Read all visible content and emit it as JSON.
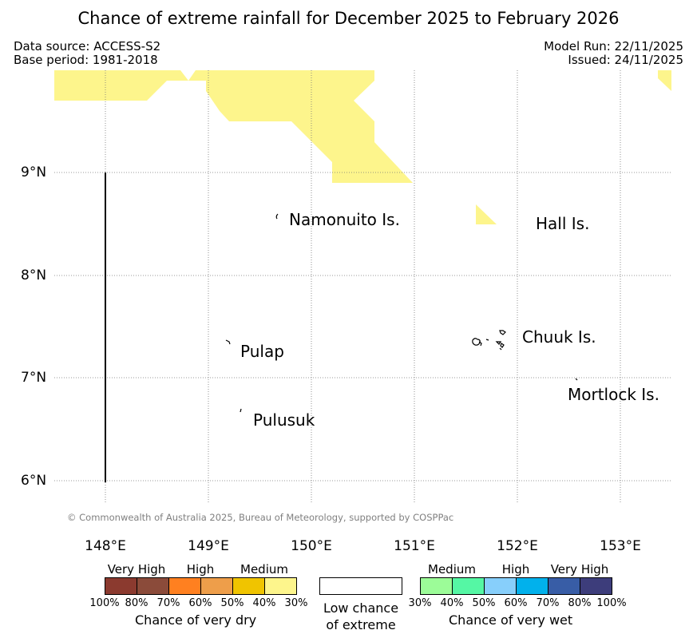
{
  "title": "Chance of extreme rainfall for December 2025 to February 2026",
  "meta": {
    "data_source": "Data source: ACCESS-S2",
    "base_period": "Base period: 1981-2018",
    "model_run": "Model Run: 22/11/2025",
    "issued": "Issued: 24/11/2025"
  },
  "map": {
    "lon_ticks": [
      "148°E",
      "149°E",
      "150°E",
      "151°E",
      "152°E",
      "153°E"
    ],
    "lat_ticks": [
      "9°N",
      "8°N",
      "7°N",
      "6°N"
    ],
    "islands": {
      "namonuito": "Namonuito Is.",
      "hall": "Hall Is.",
      "pulap": "Pulap",
      "chuuk": "Chuuk Is.",
      "mortlock": "Mortlock Is.",
      "pulusuk": "Pulusuk"
    },
    "credit": "© Commonwealth of Australia 2025, Bureau of Meteorology, supported by COSPPac",
    "shading_color": "#fdf58c"
  },
  "legend": {
    "dry": {
      "categories": [
        "Very High",
        "High",
        "Medium"
      ],
      "colors": [
        "#8b3a2f",
        "#8b4b3a",
        "#ff8020",
        "#ee9e4a",
        "#f0c400",
        "#fdf58c"
      ],
      "ticks": [
        "100%",
        "80%",
        "70%",
        "60%",
        "50%",
        "40%",
        "30%"
      ],
      "caption": "Chance of very dry"
    },
    "low": {
      "line1": "Low chance",
      "line2": "of extreme"
    },
    "wet": {
      "categories": [
        "Medium",
        "High",
        "Very High"
      ],
      "colors": [
        "#9cfc98",
        "#55f7a4",
        "#87cffb",
        "#01b1ec",
        "#385da6",
        "#3d3d7b"
      ],
      "ticks": [
        "30%",
        "40%",
        "50%",
        "60%",
        "70%",
        "80%",
        "100%"
      ],
      "caption": "Chance of very wet"
    }
  }
}
